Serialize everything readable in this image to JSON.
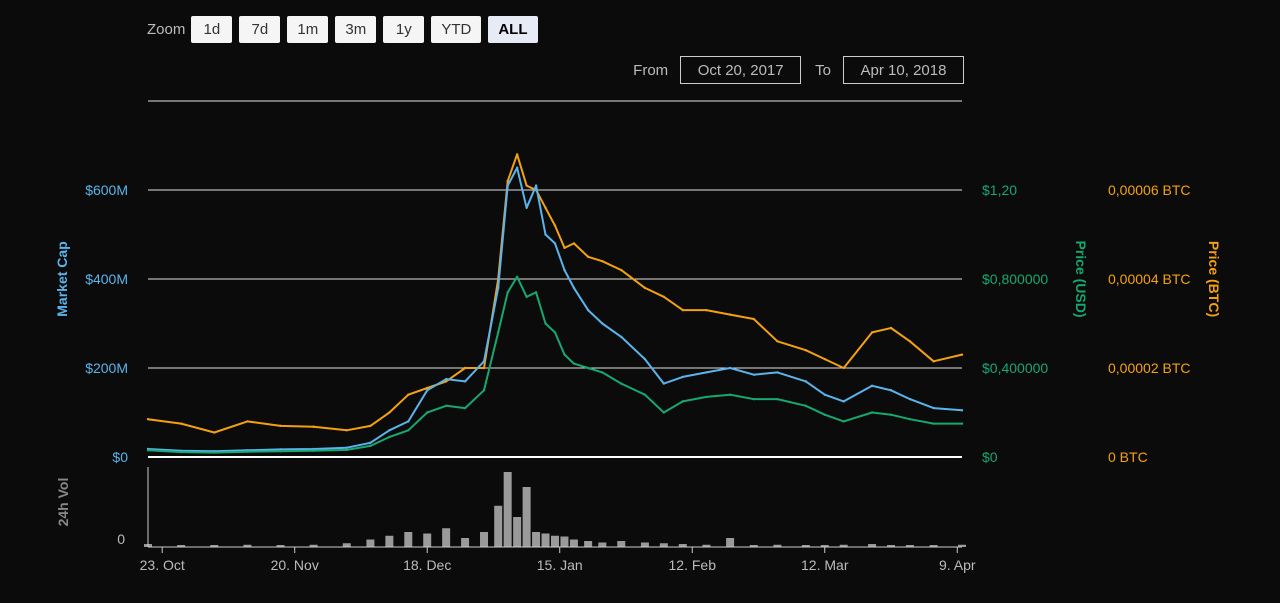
{
  "zoom": {
    "label": "Zoom",
    "buttons": [
      "1d",
      "7d",
      "1m",
      "3m",
      "1y",
      "YTD",
      "ALL"
    ],
    "active": "ALL"
  },
  "range": {
    "from_label": "From",
    "from_value": "Oct 20, 2017",
    "to_label": "To",
    "to_value": "Apr 10, 2018"
  },
  "colors": {
    "market_cap": "#5ab4ec",
    "price_usd": "#16a86f",
    "price_btc": "#f4a10f",
    "volume": "#9a9a9a",
    "background": "#0b0b0b"
  },
  "chart_data": {
    "type": "line",
    "x_range": [
      "2017-10-20",
      "2018-04-10"
    ],
    "x_tick_labels": [
      {
        "label": "23. Oct",
        "date": "2017-10-23"
      },
      {
        "label": "20. Nov",
        "date": "2017-11-20"
      },
      {
        "label": "18. Dec",
        "date": "2017-12-18"
      },
      {
        "label": "15. Jan",
        "date": "2018-01-15"
      },
      {
        "label": "12. Feb",
        "date": "2018-02-12"
      },
      {
        "label": "12. Mar",
        "date": "2018-03-12"
      },
      {
        "label": "9. Apr",
        "date": "2018-04-09"
      }
    ],
    "axes": {
      "market_cap": {
        "title": "Market Cap",
        "range": [
          0,
          800
        ],
        "ticks": [
          {
            "label": "$0",
            "value": 0
          },
          {
            "label": "$200M",
            "value": 200
          },
          {
            "label": "$400M",
            "value": 400
          },
          {
            "label": "$600M",
            "value": 600
          }
        ]
      },
      "price_usd": {
        "title": "Price (USD)",
        "range": [
          0,
          1.6
        ],
        "ticks": [
          {
            "label": "$0",
            "value": 0
          },
          {
            "label": "$0,400000",
            "value": 0.4
          },
          {
            "label": "$0,800000",
            "value": 0.8
          },
          {
            "label": "$1,20",
            "value": 1.2
          }
        ]
      },
      "price_btc": {
        "title": "Price (BTC)",
        "range": [
          0,
          8e-05
        ],
        "ticks": [
          {
            "label": "0 BTC",
            "value": 0
          },
          {
            "label": "0,00002 BTC",
            "value": 2e-05
          },
          {
            "label": "0,00004 BTC",
            "value": 4e-05
          },
          {
            "label": "0,00006 BTC",
            "value": 6e-05
          }
        ]
      },
      "volume": {
        "title": "24h Vol",
        "ticks": [
          {
            "label": "0",
            "value": 0
          }
        ]
      }
    },
    "series": [
      {
        "name": "Market Cap",
        "axis": "market_cap",
        "unit": "USD millions",
        "points": [
          [
            "2017-10-20",
            18
          ],
          [
            "2017-10-27",
            14
          ],
          [
            "2017-11-03",
            13
          ],
          [
            "2017-11-10",
            15
          ],
          [
            "2017-11-17",
            17
          ],
          [
            "2017-11-24",
            18
          ],
          [
            "2017-12-01",
            21
          ],
          [
            "2017-12-06",
            32
          ],
          [
            "2017-12-10",
            60
          ],
          [
            "2017-12-14",
            80
          ],
          [
            "2017-12-18",
            150
          ],
          [
            "2017-12-22",
            175
          ],
          [
            "2017-12-26",
            170
          ],
          [
            "2017-12-30",
            215
          ],
          [
            "2018-01-02",
            380
          ],
          [
            "2018-01-04",
            610
          ],
          [
            "2018-01-06",
            650
          ],
          [
            "2018-01-08",
            560
          ],
          [
            "2018-01-10",
            610
          ],
          [
            "2018-01-12",
            500
          ],
          [
            "2018-01-14",
            480
          ],
          [
            "2018-01-16",
            420
          ],
          [
            "2018-01-18",
            380
          ],
          [
            "2018-01-21",
            330
          ],
          [
            "2018-01-24",
            300
          ],
          [
            "2018-01-28",
            270
          ],
          [
            "2018-02-02",
            220
          ],
          [
            "2018-02-06",
            165
          ],
          [
            "2018-02-10",
            180
          ],
          [
            "2018-02-15",
            190
          ],
          [
            "2018-02-20",
            200
          ],
          [
            "2018-02-25",
            185
          ],
          [
            "2018-03-02",
            190
          ],
          [
            "2018-03-08",
            170
          ],
          [
            "2018-03-12",
            140
          ],
          [
            "2018-03-16",
            125
          ],
          [
            "2018-03-22",
            160
          ],
          [
            "2018-03-26",
            150
          ],
          [
            "2018-03-30",
            130
          ],
          [
            "2018-04-04",
            110
          ],
          [
            "2018-04-10",
            105
          ]
        ]
      },
      {
        "name": "Price (USD)",
        "axis": "price_usd",
        "unit": "USD",
        "points": [
          [
            "2017-10-20",
            0.03
          ],
          [
            "2017-10-27",
            0.022
          ],
          [
            "2017-11-03",
            0.02
          ],
          [
            "2017-11-10",
            0.024
          ],
          [
            "2017-11-17",
            0.026
          ],
          [
            "2017-11-24",
            0.028
          ],
          [
            "2017-12-01",
            0.032
          ],
          [
            "2017-12-06",
            0.05
          ],
          [
            "2017-12-10",
            0.09
          ],
          [
            "2017-12-14",
            0.12
          ],
          [
            "2017-12-18",
            0.2
          ],
          [
            "2017-12-22",
            0.23
          ],
          [
            "2017-12-26",
            0.22
          ],
          [
            "2017-12-30",
            0.3
          ],
          [
            "2018-01-02",
            0.56
          ],
          [
            "2018-01-04",
            0.74
          ],
          [
            "2018-01-06",
            0.81
          ],
          [
            "2018-01-08",
            0.72
          ],
          [
            "2018-01-10",
            0.74
          ],
          [
            "2018-01-12",
            0.6
          ],
          [
            "2018-01-14",
            0.56
          ],
          [
            "2018-01-16",
            0.46
          ],
          [
            "2018-01-18",
            0.42
          ],
          [
            "2018-01-21",
            0.4
          ],
          [
            "2018-01-24",
            0.38
          ],
          [
            "2018-01-28",
            0.33
          ],
          [
            "2018-02-02",
            0.28
          ],
          [
            "2018-02-06",
            0.2
          ],
          [
            "2018-02-10",
            0.25
          ],
          [
            "2018-02-15",
            0.27
          ],
          [
            "2018-02-20",
            0.28
          ],
          [
            "2018-02-25",
            0.26
          ],
          [
            "2018-03-02",
            0.26
          ],
          [
            "2018-03-08",
            0.23
          ],
          [
            "2018-03-12",
            0.19
          ],
          [
            "2018-03-16",
            0.16
          ],
          [
            "2018-03-22",
            0.2
          ],
          [
            "2018-03-26",
            0.19
          ],
          [
            "2018-03-30",
            0.17
          ],
          [
            "2018-04-04",
            0.15
          ],
          [
            "2018-04-10",
            0.15
          ]
        ]
      },
      {
        "name": "Price (BTC)",
        "axis": "price_btc",
        "unit": "BTC",
        "points": [
          [
            "2017-10-20",
            8.5e-06
          ],
          [
            "2017-10-27",
            7.5e-06
          ],
          [
            "2017-11-03",
            5.5e-06
          ],
          [
            "2017-11-10",
            8e-06
          ],
          [
            "2017-11-17",
            7e-06
          ],
          [
            "2017-11-24",
            6.8e-06
          ],
          [
            "2017-12-01",
            6e-06
          ],
          [
            "2017-12-06",
            7e-06
          ],
          [
            "2017-12-10",
            1e-05
          ],
          [
            "2017-12-14",
            1.4e-05
          ],
          [
            "2017-12-18",
            1.55e-05
          ],
          [
            "2017-12-22",
            1.7e-05
          ],
          [
            "2017-12-26",
            2e-05
          ],
          [
            "2017-12-30",
            2e-05
          ],
          [
            "2018-01-02",
            4e-05
          ],
          [
            "2018-01-04",
            6.2e-05
          ],
          [
            "2018-01-06",
            6.8e-05
          ],
          [
            "2018-01-08",
            6.1e-05
          ],
          [
            "2018-01-10",
            6e-05
          ],
          [
            "2018-01-12",
            5.6e-05
          ],
          [
            "2018-01-14",
            5.2e-05
          ],
          [
            "2018-01-16",
            4.7e-05
          ],
          [
            "2018-01-18",
            4.8e-05
          ],
          [
            "2018-01-21",
            4.5e-05
          ],
          [
            "2018-01-24",
            4.4e-05
          ],
          [
            "2018-01-28",
            4.2e-05
          ],
          [
            "2018-02-02",
            3.8e-05
          ],
          [
            "2018-02-06",
            3.6e-05
          ],
          [
            "2018-02-10",
            3.3e-05
          ],
          [
            "2018-02-15",
            3.3e-05
          ],
          [
            "2018-02-20",
            3.2e-05
          ],
          [
            "2018-02-25",
            3.1e-05
          ],
          [
            "2018-03-02",
            2.6e-05
          ],
          [
            "2018-03-08",
            2.4e-05
          ],
          [
            "2018-03-12",
            2.2e-05
          ],
          [
            "2018-03-16",
            2e-05
          ],
          [
            "2018-03-22",
            2.8e-05
          ],
          [
            "2018-03-26",
            2.9e-05
          ],
          [
            "2018-03-30",
            2.6e-05
          ],
          [
            "2018-04-04",
            2.15e-05
          ],
          [
            "2018-04-10",
            2.3e-05
          ]
        ]
      },
      {
        "name": "24h Vol",
        "axis": "volume",
        "unit": "relative",
        "points": [
          [
            "2017-10-20",
            0.04
          ],
          [
            "2017-10-27",
            0.02
          ],
          [
            "2017-11-03",
            0.02
          ],
          [
            "2017-11-10",
            0.03
          ],
          [
            "2017-11-17",
            0.02
          ],
          [
            "2017-11-24",
            0.03
          ],
          [
            "2017-12-01",
            0.05
          ],
          [
            "2017-12-06",
            0.1
          ],
          [
            "2017-12-10",
            0.15
          ],
          [
            "2017-12-14",
            0.2
          ],
          [
            "2017-12-18",
            0.18
          ],
          [
            "2017-12-22",
            0.25
          ],
          [
            "2017-12-26",
            0.12
          ],
          [
            "2017-12-30",
            0.2
          ],
          [
            "2018-01-02",
            0.55
          ],
          [
            "2018-01-04",
            1.0
          ],
          [
            "2018-01-06",
            0.4
          ],
          [
            "2018-01-08",
            0.8
          ],
          [
            "2018-01-10",
            0.2
          ],
          [
            "2018-01-12",
            0.18
          ],
          [
            "2018-01-14",
            0.15
          ],
          [
            "2018-01-16",
            0.14
          ],
          [
            "2018-01-18",
            0.1
          ],
          [
            "2018-01-21",
            0.08
          ],
          [
            "2018-01-24",
            0.06
          ],
          [
            "2018-01-28",
            0.08
          ],
          [
            "2018-02-02",
            0.06
          ],
          [
            "2018-02-06",
            0.05
          ],
          [
            "2018-02-10",
            0.04
          ],
          [
            "2018-02-15",
            0.03
          ],
          [
            "2018-02-20",
            0.12
          ],
          [
            "2018-02-25",
            0.02
          ],
          [
            "2018-03-02",
            0.03
          ],
          [
            "2018-03-08",
            0.02
          ],
          [
            "2018-03-12",
            0.02
          ],
          [
            "2018-03-16",
            0.03
          ],
          [
            "2018-03-22",
            0.04
          ],
          [
            "2018-03-26",
            0.02
          ],
          [
            "2018-03-30",
            0.02
          ],
          [
            "2018-04-04",
            0.02
          ],
          [
            "2018-04-10",
            0.03
          ]
        ]
      }
    ],
    "grid": true,
    "legend": "none"
  }
}
